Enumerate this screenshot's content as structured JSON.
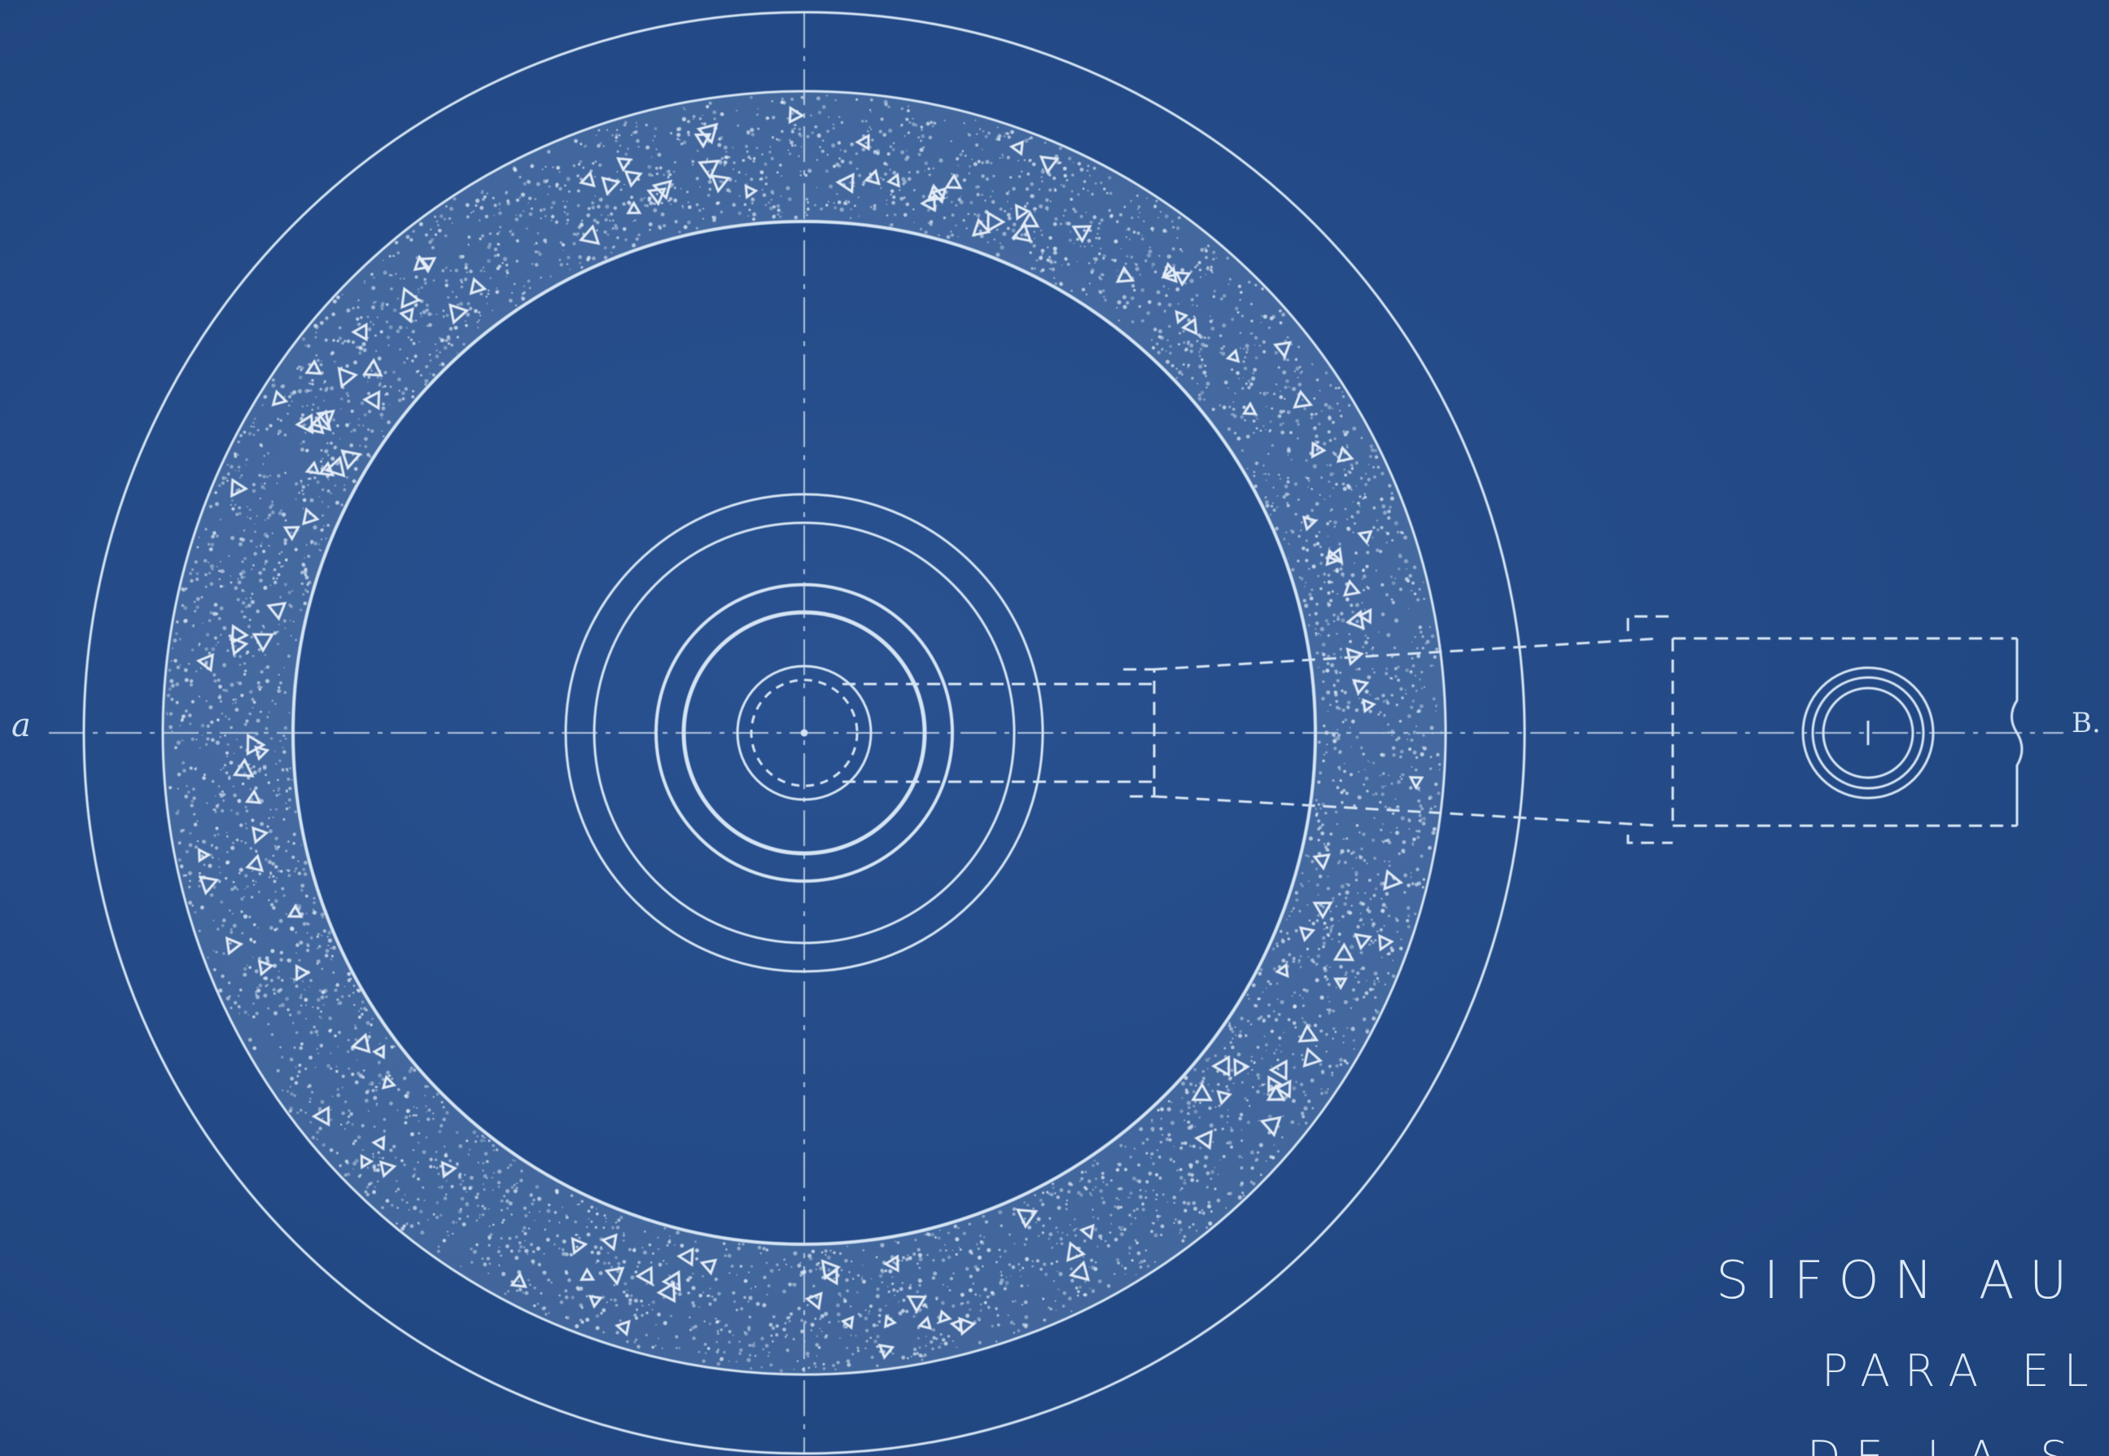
{
  "labels": {
    "section_left": "a",
    "section_right": "B."
  },
  "title_block": {
    "line1": "SIFON AU",
    "line2": "PARA EL",
    "line3": "DE LA S"
  },
  "colors": {
    "paper": "#244a84",
    "ink": "#dce8f6"
  }
}
